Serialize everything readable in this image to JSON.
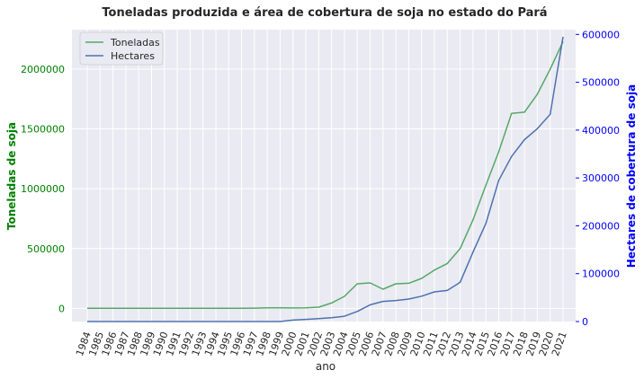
{
  "chart_data": {
    "type": "line",
    "title": "Toneladas produzida e área de cobertura de soja no estado do Pará",
    "xlabel": "ano",
    "ylabel_left": "Toneladas de soja",
    "ylabel_right": "Hectares de cobertura de soja",
    "x": [
      "1984",
      "1985",
      "1986",
      "1987",
      "1988",
      "1989",
      "1990",
      "1991",
      "1992",
      "1993",
      "1994",
      "1995",
      "1996",
      "1997",
      "1998",
      "1999",
      "2000",
      "2001",
      "2002",
      "2003",
      "2004",
      "2005",
      "2006",
      "2007",
      "2008",
      "2009",
      "2010",
      "2011",
      "2012",
      "2013",
      "2014",
      "2015",
      "2016",
      "2017",
      "2018",
      "2019",
      "2020",
      "2021"
    ],
    "ylim_left": [
      -110000,
      2330000
    ],
    "ylim_right": [
      0,
      610000
    ],
    "left_ticks": [
      "0",
      "500000",
      "1000000",
      "1500000",
      "2000000"
    ],
    "right_ticks": [
      "0",
      "100000",
      "200000",
      "300000",
      "400000",
      "500000",
      "600000"
    ],
    "grid": true,
    "legend_position": "upper-left",
    "series": [
      {
        "name": "Toneladas",
        "axis": "left",
        "color": "#55a868",
        "values": [
          0,
          0,
          0,
          0,
          0,
          0,
          0,
          0,
          0,
          0,
          0,
          0,
          0,
          2000,
          4000,
          5000,
          3000,
          4000,
          10000,
          45000,
          100000,
          205000,
          213000,
          160000,
          205000,
          210000,
          250000,
          320000,
          375000,
          500000,
          740000,
          1030000,
          1310000,
          1630000,
          1640000,
          1790000,
          2000000,
          2230000
        ]
      },
      {
        "name": "Hectares",
        "axis": "right",
        "color": "#4c72b0",
        "values": [
          0,
          0,
          0,
          0,
          0,
          0,
          0,
          0,
          0,
          0,
          0,
          0,
          0,
          0,
          0,
          0,
          3000,
          4500,
          6000,
          8000,
          11000,
          21000,
          35000,
          42000,
          44000,
          47000,
          53000,
          62000,
          65000,
          82000,
          145000,
          205000,
          295000,
          345000,
          380000,
          403000,
          433000,
          595000
        ]
      }
    ]
  }
}
